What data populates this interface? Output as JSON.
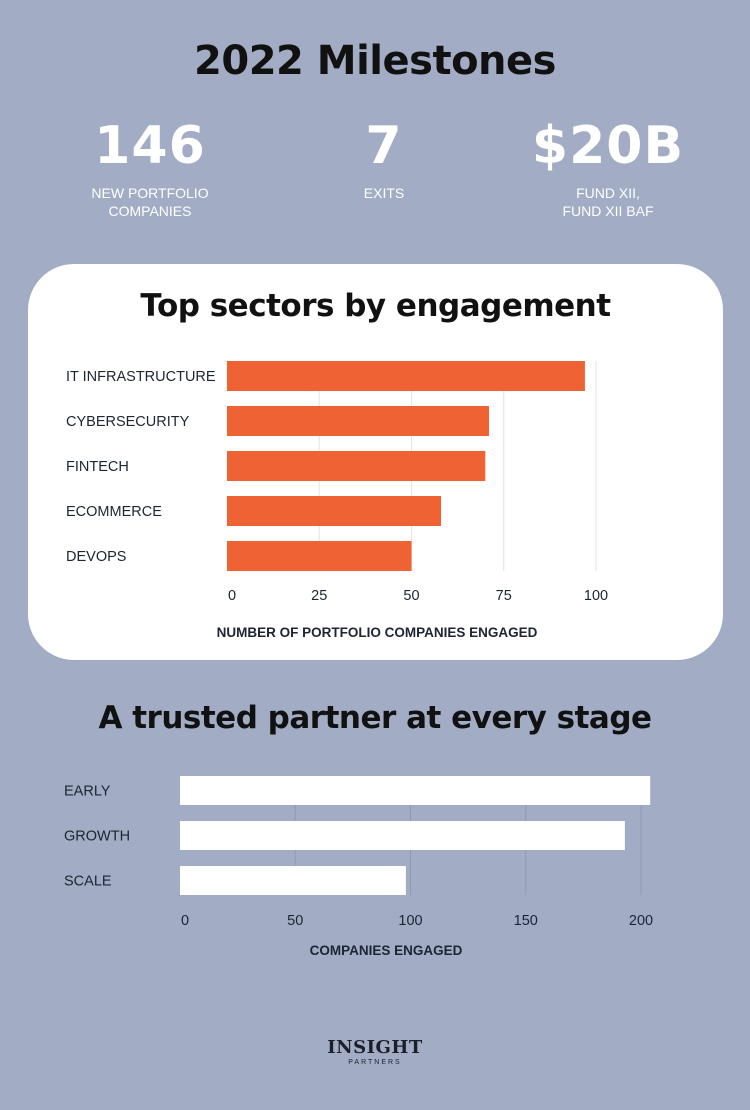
{
  "title": "2022 Milestones",
  "stats": [
    {
      "value": "146",
      "label": "NEW PORTFOLIO\nCOMPANIES"
    },
    {
      "value": "7",
      "label": "EXITS"
    },
    {
      "value": "$20B",
      "label": "FUND XII,\nFUND XII BAF"
    }
  ],
  "colors": {
    "background": "#a2adc5",
    "card": "#ffffff",
    "bar_orange": "#ef6233",
    "bar_white": "#ffffff",
    "text_dark": "#111111",
    "axis_text": "#1d2433"
  },
  "chart_data": [
    {
      "type": "bar",
      "orientation": "horizontal",
      "title": "Top sectors by engagement",
      "categories": [
        "IT INFRASTRUCTURE",
        "CYBERSECURITY",
        "FINTECH",
        "ECOMMERCE",
        "DEVOPS"
      ],
      "values": [
        97,
        71,
        70,
        58,
        50
      ],
      "xlabel": "NUMBER OF PORTFOLIO COMPANIES ENGAGED",
      "xlim": [
        0,
        100
      ],
      "xticks": [
        0,
        25,
        50,
        75,
        100
      ],
      "grid": true,
      "bar_color": "#ef6233"
    },
    {
      "type": "bar",
      "orientation": "horizontal",
      "title": "A trusted partner at every stage",
      "categories": [
        "EARLY",
        "GROWTH",
        "SCALE"
      ],
      "values": [
        204,
        193,
        98
      ],
      "xlabel": "COMPANIES ENGAGED",
      "xlim": [
        0,
        200
      ],
      "xticks": [
        0,
        50,
        100,
        150,
        200
      ],
      "grid": true,
      "bar_color": "#ffffff"
    }
  ],
  "logo": {
    "word": "INSIGHT",
    "sub": "PARTNERS"
  }
}
